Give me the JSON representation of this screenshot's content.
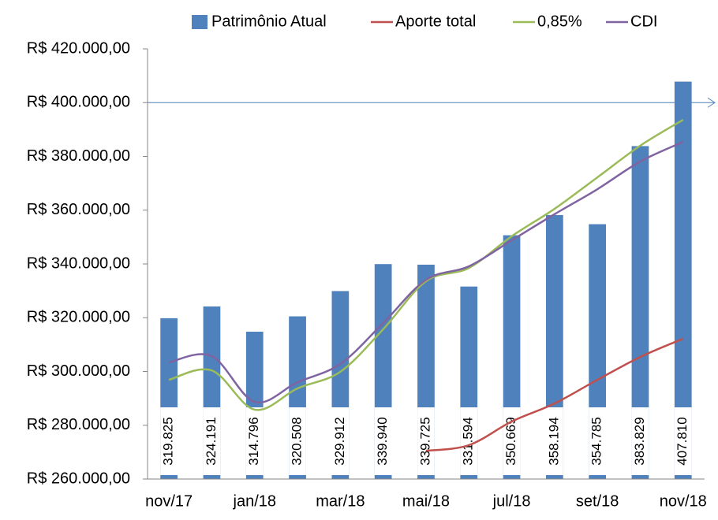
{
  "chart_data": {
    "type": "bar",
    "categories": [
      "nov/17",
      null,
      "jan/18",
      null,
      "mar/18",
      null,
      "mai/18",
      null,
      "jul/18",
      null,
      "set/18",
      null,
      "nov/18"
    ],
    "series": [
      {
        "name": "Patrimônio Atual",
        "type": "bar",
        "color": "#4f81bd",
        "values": [
          319825,
          324191,
          314796,
          320508,
          329912,
          339940,
          339725,
          331594,
          350669,
          358194,
          354785,
          383829,
          407810
        ],
        "value_labels": [
          "319.825",
          "324.191",
          "314.796",
          "320.508",
          "329.912",
          "339.940",
          "339.725",
          "331.594",
          "350.669",
          "358.194",
          "354.785",
          "383.829",
          "407.810"
        ]
      },
      {
        "name": "Aporte total",
        "type": "line",
        "color": "#c0504d",
        "values": [
          null,
          null,
          null,
          null,
          null,
          null,
          270500,
          272600,
          281400,
          288100,
          296900,
          305400,
          312200
        ]
      },
      {
        "name": "0,85%",
        "type": "line",
        "color": "#9bbb59",
        "values": [
          296900,
          300400,
          285800,
          293700,
          299900,
          315700,
          333600,
          338500,
          350300,
          360500,
          372200,
          384000,
          393600
        ]
      },
      {
        "name": "CDI",
        "type": "line",
        "color": "#8064a2",
        "values": [
          303400,
          305700,
          288700,
          296000,
          302800,
          318000,
          334100,
          339100,
          348800,
          358500,
          367800,
          378100,
          385400
        ]
      }
    ],
    "ylim": [
      260000,
      420000
    ],
    "yticks": [
      {
        "value": 260000,
        "label": "R$ 260.000,00"
      },
      {
        "value": 280000,
        "label": "R$ 280.000,00"
      },
      {
        "value": 300000,
        "label": "R$ 300.000,00"
      },
      {
        "value": 320000,
        "label": "R$ 320.000,00"
      },
      {
        "value": 340000,
        "label": "R$ 340.000,00"
      },
      {
        "value": 360000,
        "label": "R$ 360.000,00"
      },
      {
        "value": 380000,
        "label": "R$ 380.000,00"
      },
      {
        "value": 400000,
        "label": "R$ 400.000,00"
      },
      {
        "value": 420000,
        "label": "R$ 420.000,00"
      }
    ],
    "reference_line": 400000,
    "legend": "top",
    "grid": false
  }
}
